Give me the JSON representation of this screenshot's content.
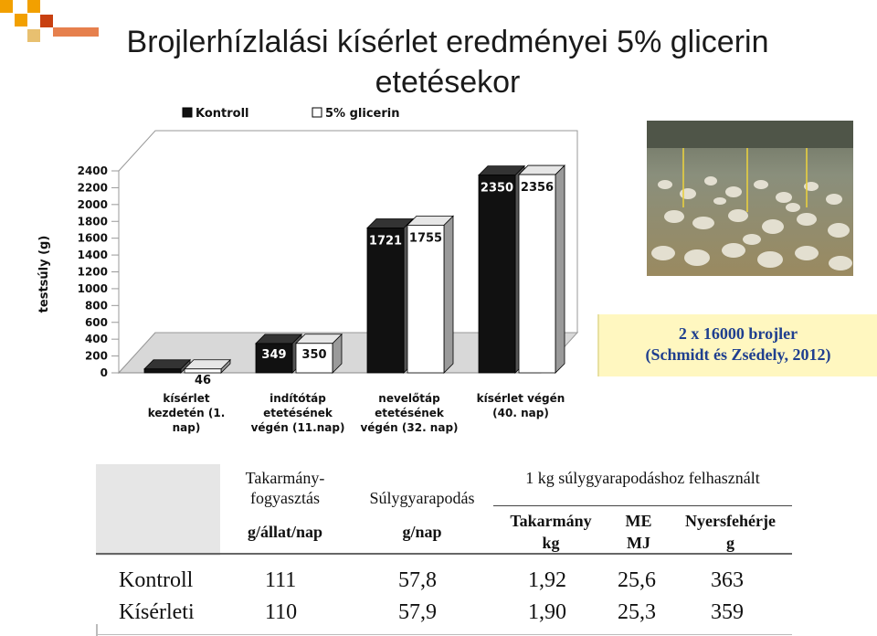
{
  "title_line1": "Brojlerhízlalási kísérlet eredményei 5% glicerin",
  "title_line2": "etetésekor",
  "source": {
    "line1": "2 x 16000 brojler",
    "line2": "(Schmidt és Zsédely, 2012)"
  },
  "photo": {
    "alt": "broiler-barn-photo"
  },
  "chart_data": {
    "type": "bar",
    "ylabel": "testsúly (g)",
    "ylim": [
      0,
      2400
    ],
    "yticks": [
      "0",
      "200",
      "400",
      "600",
      "800",
      "1000",
      "1200",
      "1400",
      "1600",
      "1800",
      "2000",
      "2200",
      "2400"
    ],
    "categories": [
      [
        "kísérlet",
        "kezdetén (1.",
        "nap)"
      ],
      [
        "indítótáp",
        "etetésének",
        "végén (11.nap)"
      ],
      [
        "nevelőtáp",
        "etetésének",
        "végén (32. nap)"
      ],
      [
        "kísérlet végén",
        "(40. nap)"
      ]
    ],
    "series": [
      {
        "name": "Kontroll",
        "values": [
          46,
          349,
          1721,
          2350
        ],
        "labels": [
          "46",
          "349",
          "1721",
          "2350"
        ],
        "color": "#111111"
      },
      {
        "name": "5% glicerin",
        "values": [
          46,
          350,
          1755,
          2356
        ],
        "labels": [
          "46",
          "350",
          "1755",
          "2356"
        ],
        "color": "#ffffff"
      }
    ],
    "legend": "top"
  },
  "table": {
    "col1_header": [
      "Takarmány-",
      "fogyasztás"
    ],
    "col1_unit": "g/állat/nap",
    "col2_header": "Súlygyarapodás",
    "col2_unit": "g/nap",
    "group_header": "1 kg súlygyarapodáshoz felhasznált",
    "sub1": [
      "Takarmány",
      "kg"
    ],
    "sub2": [
      "ME",
      "MJ"
    ],
    "sub3": [
      "Nyersfehérje",
      "g"
    ],
    "rows": [
      {
        "name": "Kontroll",
        "feed": "111",
        "gain": "57,8",
        "fcr": "1,92",
        "me": "25,6",
        "cp": "363"
      },
      {
        "name": "Kísérleti",
        "feed": "110",
        "gain": "57,9",
        "fcr": "1,90",
        "me": "25,3",
        "cp": "359"
      }
    ]
  }
}
